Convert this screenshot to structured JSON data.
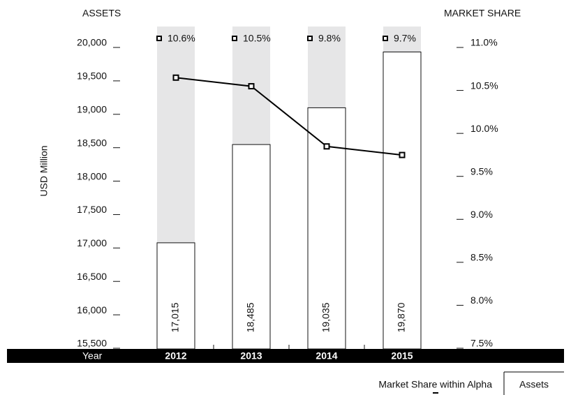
{
  "chart_data": {
    "type": "bar",
    "y_title": "ASSETS",
    "y2_title": "MARKET SHARE",
    "y_label": "USD Million",
    "x_label": "Year",
    "categories": [
      "2012",
      "2013",
      "2014",
      "2015"
    ],
    "series": [
      {
        "name": "Assets",
        "type": "bar",
        "color": "#ffffff",
        "values": [
          17015,
          18485,
          19035,
          19870
        ],
        "value_labels": [
          "17,015",
          "18,485",
          "19,035",
          "19,870"
        ]
      },
      {
        "name": "Market Share within Alpha",
        "type": "line",
        "axis": "y2",
        "color": "#000000",
        "values": [
          10.6,
          10.5,
          9.8,
          9.7
        ],
        "value_labels": [
          "10.6%",
          "10.5%",
          "9.8%",
          "9.7%"
        ]
      }
    ],
    "ylim": [
      15500,
      20000
    ],
    "yticks": [
      {
        "value": 15500,
        "label": "15,500"
      },
      {
        "value": 16000,
        "label": "16,000"
      },
      {
        "value": 16500,
        "label": "16,500"
      },
      {
        "value": 17000,
        "label": "17,000"
      },
      {
        "value": 17500,
        "label": "17,500"
      },
      {
        "value": 18000,
        "label": "18,000"
      },
      {
        "value": 18500,
        "label": "18,500"
      },
      {
        "value": 19000,
        "label": "19,000"
      },
      {
        "value": 19500,
        "label": "19,500"
      },
      {
        "value": 20000,
        "label": "20,000"
      }
    ],
    "y2lim": [
      7.5,
      11.0
    ],
    "y2ticks": [
      {
        "value": 7.5,
        "label": "7.5%"
      },
      {
        "value": 8.0,
        "label": "8.0%"
      },
      {
        "value": 8.5,
        "label": "8.5%"
      },
      {
        "value": 9.0,
        "label": "9.0%"
      },
      {
        "value": 9.5,
        "label": "9.5%"
      },
      {
        "value": 10.0,
        "label": "10.0%"
      },
      {
        "value": 10.5,
        "label": "10.5%"
      },
      {
        "value": 11.0,
        "label": "11.0%"
      }
    ]
  }
}
